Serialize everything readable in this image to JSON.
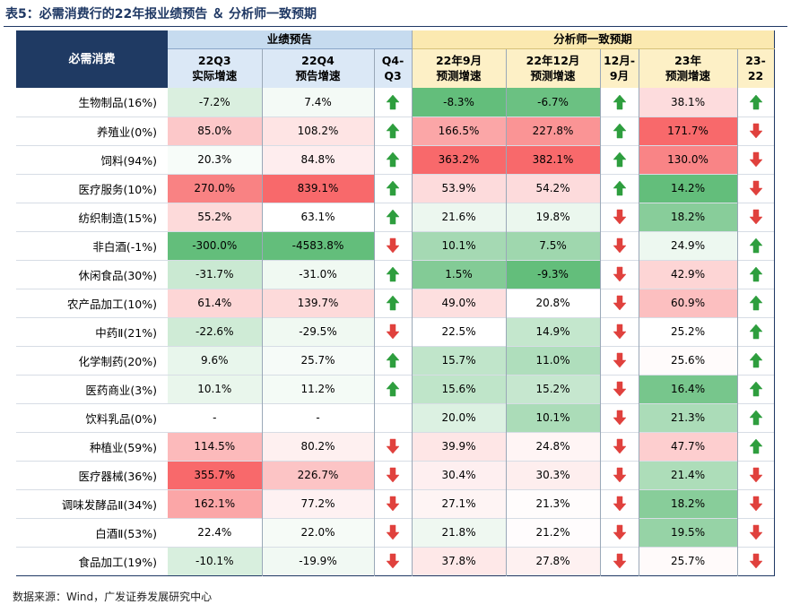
{
  "caption": "表5：必需消费行的22年报业绩预告 ＆ 分析师一致预期",
  "header": {
    "left_label": "必需消费",
    "group1": "业绩预告",
    "group2": "分析师一致预期",
    "cols": [
      {
        "l1": "22Q3",
        "l2": "实际增速"
      },
      {
        "l1": "22Q4",
        "l2": "预告增速"
      },
      {
        "l1": "Q4-",
        "l2": "Q3"
      },
      {
        "l1": "22年9月",
        "l2": "预测增速"
      },
      {
        "l1": "22年12月",
        "l2": "预测增速"
      },
      {
        "l1": "12月-",
        "l2": "9月"
      },
      {
        "l1": "23年",
        "l2": "预测增速"
      },
      {
        "l1": "23-",
        "l2": "22"
      }
    ]
  },
  "colors": {
    "up_arrow": "#2e9e3e",
    "down_arrow": "#e0413d",
    "header_navy": "#1f3a63",
    "group1_bg": "#c6dbef",
    "group2_bg": "#fbe9b0"
  },
  "rows": [
    {
      "name": "生物制品(16%)",
      "q3": "-7.2%",
      "q4": "7.4%",
      "a1": "up",
      "sep": "-8.3%",
      "dec": "-6.7%",
      "a2": "up",
      "y23": "38.1%",
      "a3": "up"
    },
    {
      "name": "养殖业(0%)",
      "q3": "85.0%",
      "q4": "108.2%",
      "a1": "up",
      "sep": "166.5%",
      "dec": "227.8%",
      "a2": "up",
      "y23": "171.7%",
      "a3": "down"
    },
    {
      "name": "饲料(94%)",
      "q3": "20.3%",
      "q4": "84.8%",
      "a1": "up",
      "sep": "363.2%",
      "dec": "382.1%",
      "a2": "up",
      "y23": "130.0%",
      "a3": "down"
    },
    {
      "name": "医疗服务(10%)",
      "q3": "270.0%",
      "q4": "839.1%",
      "a1": "up",
      "sep": "53.9%",
      "dec": "54.2%",
      "a2": "up",
      "y23": "14.2%",
      "a3": "down"
    },
    {
      "name": "纺织制造(15%)",
      "q3": "55.2%",
      "q4": "63.1%",
      "a1": "up",
      "sep": "21.6%",
      "dec": "19.8%",
      "a2": "down",
      "y23": "18.2%",
      "a3": "down"
    },
    {
      "name": "非白酒(-1%)",
      "q3": "-300.0%",
      "q4": "-4583.8%",
      "a1": "down",
      "sep": "10.1%",
      "dec": "7.5%",
      "a2": "down",
      "y23": "24.9%",
      "a3": "up"
    },
    {
      "name": "休闲食品(30%)",
      "q3": "-31.7%",
      "q4": "-31.0%",
      "a1": "up",
      "sep": "1.5%",
      "dec": "-9.3%",
      "a2": "down",
      "y23": "42.9%",
      "a3": "up"
    },
    {
      "name": "农产品加工(10%)",
      "q3": "61.4%",
      "q4": "139.7%",
      "a1": "up",
      "sep": "49.0%",
      "dec": "20.8%",
      "a2": "down",
      "y23": "60.9%",
      "a3": "up"
    },
    {
      "name": "中药Ⅱ(21%)",
      "q3": "-22.6%",
      "q4": "-29.5%",
      "a1": "down",
      "sep": "22.5%",
      "dec": "14.9%",
      "a2": "down",
      "y23": "25.2%",
      "a3": "up"
    },
    {
      "name": "化学制药(20%)",
      "q3": "9.6%",
      "q4": "25.7%",
      "a1": "up",
      "sep": "15.7%",
      "dec": "11.0%",
      "a2": "down",
      "y23": "25.6%",
      "a3": "up"
    },
    {
      "name": "医药商业(3%)",
      "q3": "10.1%",
      "q4": "11.2%",
      "a1": "up",
      "sep": "15.6%",
      "dec": "15.2%",
      "a2": "down",
      "y23": "16.4%",
      "a3": "up"
    },
    {
      "name": "饮料乳品(0%)",
      "q3": "-",
      "q4": "-",
      "a1": "none",
      "sep": "20.0%",
      "dec": "10.1%",
      "a2": "down",
      "y23": "21.3%",
      "a3": "up"
    },
    {
      "name": "种植业(59%)",
      "q3": "114.5%",
      "q4": "80.2%",
      "a1": "down",
      "sep": "39.9%",
      "dec": "24.8%",
      "a2": "down",
      "y23": "47.7%",
      "a3": "up"
    },
    {
      "name": "医疗器械(36%)",
      "q3": "355.7%",
      "q4": "226.7%",
      "a1": "down",
      "sep": "30.4%",
      "dec": "30.3%",
      "a2": "down",
      "y23": "21.4%",
      "a3": "down"
    },
    {
      "name": "调味发酵品Ⅱ(34%)",
      "q3": "162.1%",
      "q4": "77.2%",
      "a1": "down",
      "sep": "27.1%",
      "dec": "21.3%",
      "a2": "down",
      "y23": "18.2%",
      "a3": "down"
    },
    {
      "name": "白酒Ⅱ(53%)",
      "q3": "22.4%",
      "q4": "22.0%",
      "a1": "down",
      "sep": "21.8%",
      "dec": "21.2%",
      "a2": "down",
      "y23": "19.5%",
      "a3": "down"
    },
    {
      "name": "食品加工(19%)",
      "q3": "-10.1%",
      "q4": "-19.9%",
      "a1": "down",
      "sep": "37.8%",
      "dec": "27.8%",
      "a2": "down",
      "y23": "25.7%",
      "a3": "down"
    }
  ],
  "footer": "数据来源：Wind，广发证券发展研究中心"
}
